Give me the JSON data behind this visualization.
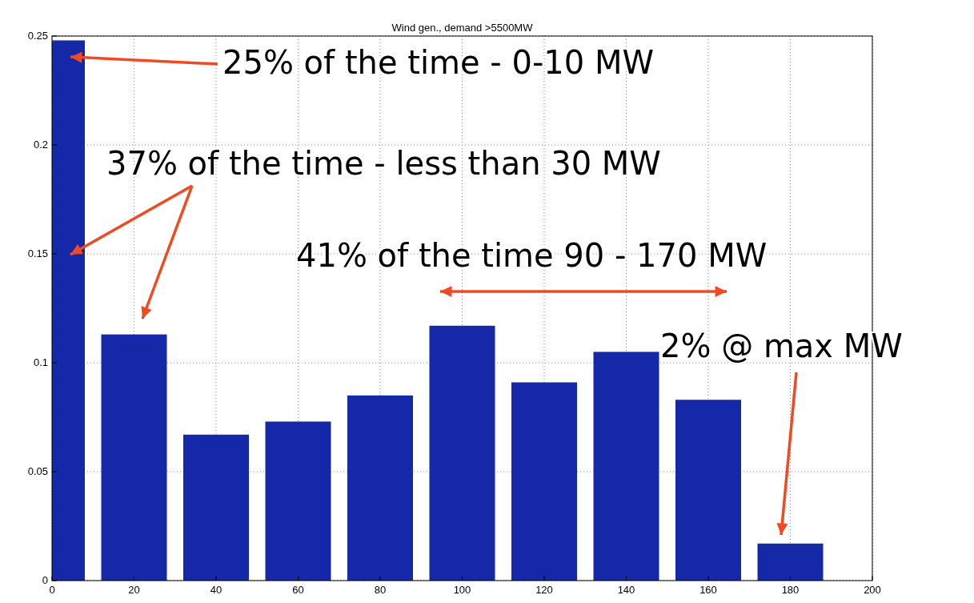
{
  "chart_data": {
    "type": "bar",
    "title": "Wind gen., demand >5500MW",
    "x": [
      0,
      20,
      40,
      60,
      80,
      100,
      120,
      140,
      160,
      180
    ],
    "values": [
      0.248,
      0.113,
      0.067,
      0.073,
      0.085,
      0.117,
      0.091,
      0.105,
      0.083,
      0.017
    ],
    "color": "#1428a8",
    "xlim": [
      0,
      200
    ],
    "xticks": [
      0,
      20,
      40,
      60,
      80,
      100,
      120,
      140,
      160,
      180,
      200
    ],
    "ylim": [
      0,
      0.25
    ],
    "yticks": [
      0,
      0.05,
      0.1,
      0.15,
      0.2,
      0.25
    ],
    "grid": true,
    "annotations": [
      "25% of the time - 0-10 MW",
      "37% of the time - less than 30 MW",
      "41% of the time 90 - 170 MW",
      "2% @ max MW"
    ]
  }
}
